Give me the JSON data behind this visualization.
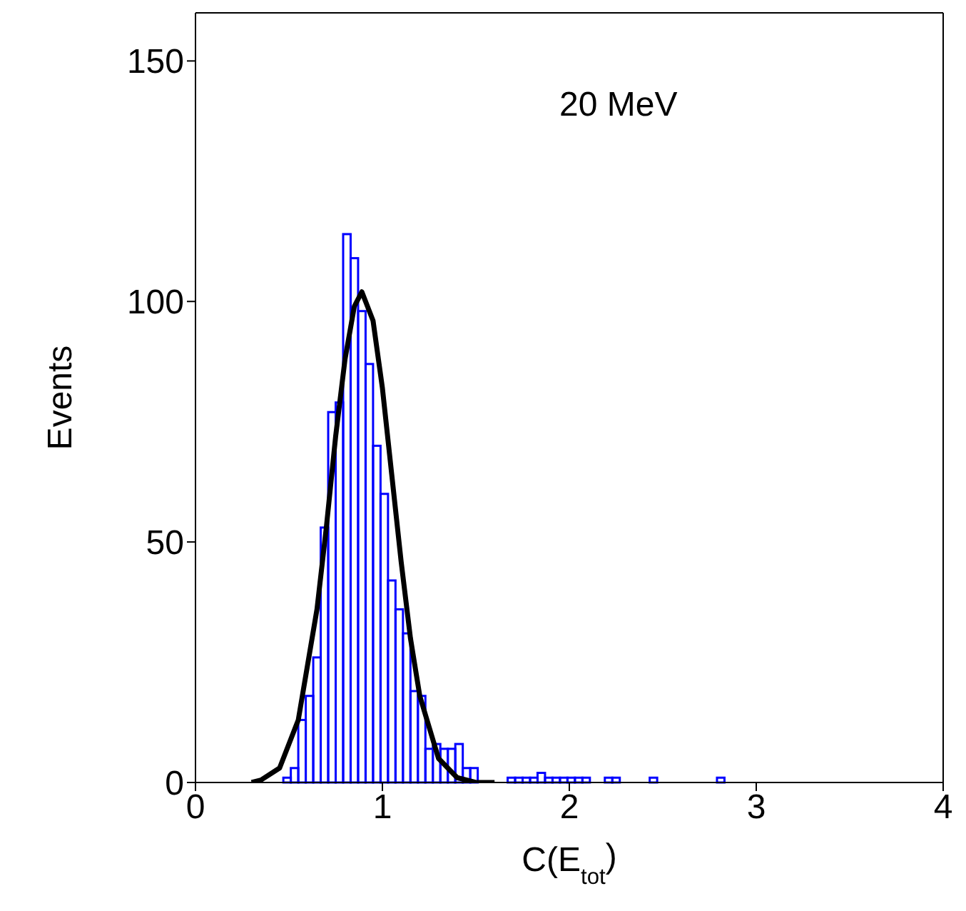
{
  "chart_data": {
    "type": "histogram",
    "xlabel": "C(E$_{tot}$)",
    "ylabel": "Events",
    "annotations": [
      "20 MeV"
    ],
    "bins": [
      0.47,
      0.51,
      0.55,
      0.59,
      0.63,
      0.67,
      0.71,
      0.75,
      0.79,
      0.83,
      0.87,
      0.91,
      0.95,
      0.99,
      1.03,
      1.07,
      1.11,
      1.15,
      1.19,
      1.23,
      1.27,
      1.31,
      1.35,
      1.39,
      1.43,
      1.47,
      1.51,
      1.55,
      1.59,
      1.63,
      1.67,
      1.71,
      1.75,
      1.79,
      1.83,
      1.87,
      1.91,
      1.95,
      1.99,
      2.03,
      2.07,
      2.11,
      2.15,
      2.19,
      2.23,
      2.27,
      2.31,
      2.35,
      2.39,
      2.43,
      2.47,
      2.51,
      2.55,
      2.59,
      2.63,
      2.67,
      2.71,
      2.75,
      2.79,
      2.83
    ],
    "values": [
      1,
      3,
      13,
      18,
      26,
      53,
      77,
      79,
      114,
      109,
      98,
      87,
      70,
      60,
      42,
      36,
      31,
      19,
      18,
      7,
      8,
      7,
      7,
      8,
      3,
      3,
      0,
      0,
      0,
      0,
      1,
      1,
      1,
      1,
      2,
      1,
      1,
      1,
      1,
      1,
      1,
      0,
      0,
      1,
      1,
      0,
      0,
      0,
      0,
      1,
      0,
      0,
      0,
      0,
      0,
      0,
      0,
      0,
      1
    ],
    "color": "#0000ff",
    "series": [
      {
        "type": "line",
        "color": "#000000",
        "x": [
          0.3,
          0.35,
          0.45,
          0.55,
          0.65,
          0.7,
          0.75,
          0.8,
          0.85,
          0.89,
          0.95,
          1,
          1.05,
          1.1,
          1.15,
          1.2,
          1.3,
          1.4,
          1.5,
          1.6
        ],
        "values": [
          0,
          0.5,
          3,
          13,
          36,
          53,
          72,
          88,
          99,
          102,
          96,
          82,
          64,
          46,
          30,
          18,
          5,
          1,
          0,
          0
        ]
      }
    ],
    "xlim": [
      0,
      4
    ],
    "ylim": [
      0,
      160
    ],
    "xticks": [
      0,
      1,
      2,
      3,
      4
    ],
    "yticks": [
      0,
      50,
      100,
      150
    ]
  }
}
